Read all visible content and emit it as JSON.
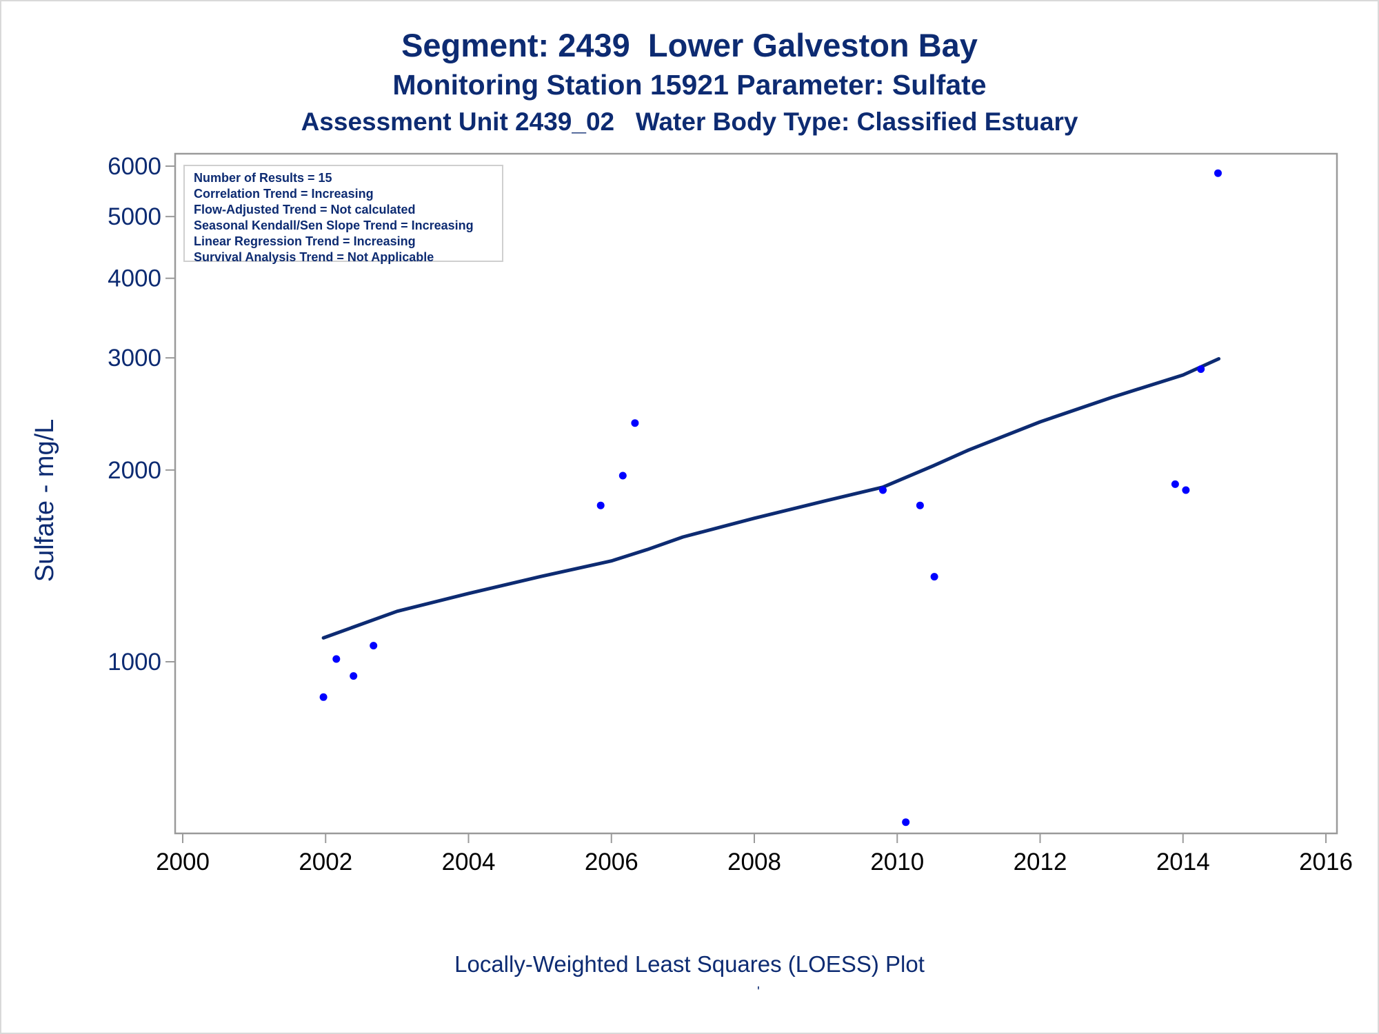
{
  "titles": {
    "line1": "Segment: 2439  Lower Galveston Bay",
    "line2": "Monitoring Station 15921 Parameter: Sulfate",
    "line3": "Assessment Unit 2439_02   Water Body Type: Classified Estuary"
  },
  "info_box": [
    "Number of Results = 15",
    "Correlation Trend = Increasing",
    "Flow-Adjusted Trend = Not calculated",
    "Seasonal Kendall/Sen Slope Trend = Increasing",
    "Linear Regression Trend = Increasing",
    "Survival Analysis Trend = Not Applicable"
  ],
  "footnote": "Locally-Weighted Least Squares (LOESS) Plot",
  "footnote_mark": "'",
  "colors": {
    "text": "#0d2b72",
    "points": "#0000ff",
    "trend_line": "#0d2b72",
    "axis": "#9a9a9a"
  },
  "chart_data": {
    "type": "scatter",
    "ylabel": "Sulfate - mg/L",
    "xlabel": "",
    "y_scale": "log",
    "xlim": [
      2000,
      2016
    ],
    "ylim": [
      540,
      6200
    ],
    "x_ticks": [
      2000,
      2002,
      2004,
      2006,
      2008,
      2010,
      2012,
      2014,
      2016
    ],
    "y_ticks": [
      1000,
      2000,
      3000,
      4000,
      5000,
      6000
    ],
    "grid": false,
    "series": [
      {
        "kind": "points",
        "x": [
          2001.97,
          2002.15,
          2002.39,
          2002.67,
          2005.85,
          2006.16,
          2006.33,
          2009.8,
          2010.12,
          2010.32,
          2010.52,
          2013.89,
          2014.04,
          2014.25,
          2014.49
        ],
        "y": [
          880,
          1010,
          950,
          1060,
          1760,
          1960,
          2370,
          1860,
          560,
          1760,
          1360,
          1900,
          1860,
          2880,
          5850
        ]
      },
      {
        "kind": "line",
        "x": [
          2001.97,
          2003,
          2004,
          2005,
          2006,
          2006.5,
          2007,
          2008,
          2009,
          2009.8,
          2010.5,
          2011,
          2012,
          2013,
          2014,
          2014.5
        ],
        "y": [
          1090,
          1200,
          1280,
          1360,
          1440,
          1500,
          1570,
          1680,
          1790,
          1880,
          2030,
          2150,
          2380,
          2600,
          2820,
          2990
        ]
      }
    ]
  }
}
